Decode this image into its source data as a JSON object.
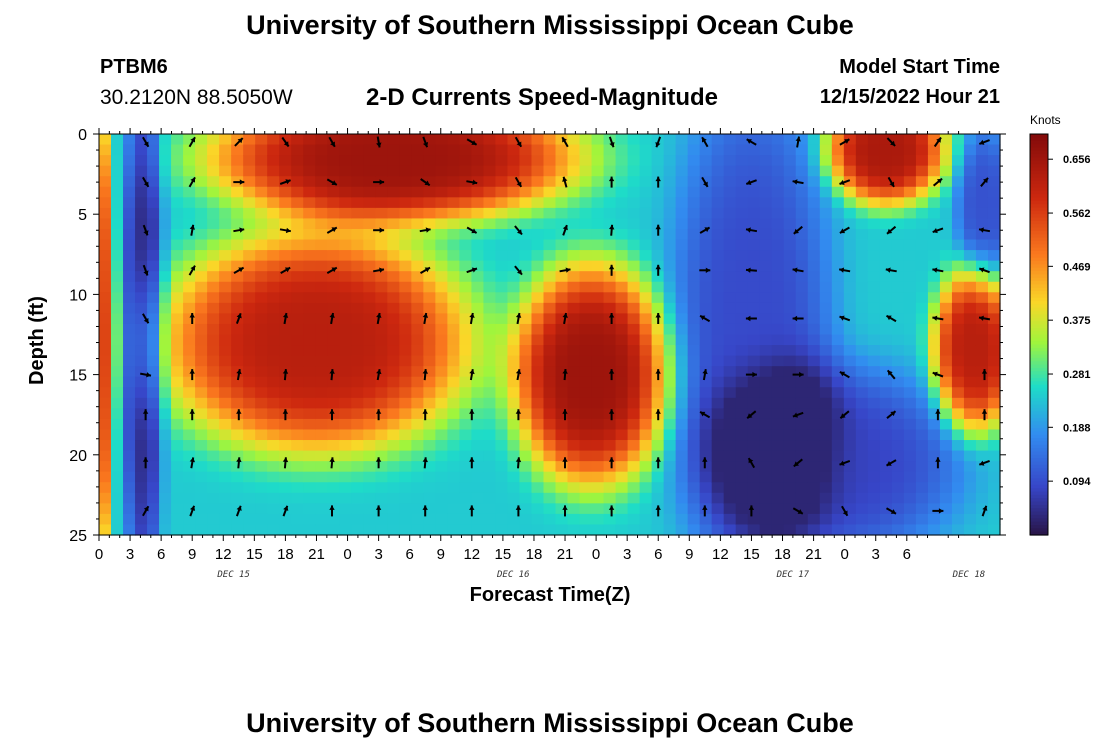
{
  "header": {
    "title": "University of Southern Mississippi Ocean Cube",
    "station": "PTBM6",
    "coords": "30.2120N  88.5050W",
    "plot_title": "2-D Currents Speed-Magnitude",
    "model_start_label": "Model Start Time",
    "model_start_value": "12/15/2022 Hour 21"
  },
  "footer": {
    "title": "University of Southern Mississippi Ocean Cube"
  },
  "colorbar": {
    "units": "Knots",
    "ticks": [
      "0.656",
      "0.562",
      "0.469",
      "0.375",
      "0.281",
      "0.188",
      "0.094"
    ],
    "tick_values": [
      0.656,
      0.562,
      0.469,
      0.375,
      0.281,
      0.188,
      0.094
    ],
    "min": 0.0,
    "max": 0.7
  },
  "chart_data": {
    "type": "heatmap",
    "title": "2-D Currents Speed-Magnitude",
    "xlabel": "Forecast Time(Z)",
    "ylabel": "Depth (ft)",
    "xlim": [
      0,
      87
    ],
    "ylim": [
      0,
      25
    ],
    "x_tick_labels": [
      "0",
      "3",
      "6",
      "9",
      "12",
      "15",
      "18",
      "21",
      "0",
      "3",
      "6",
      "9",
      "12",
      "15",
      "18",
      "21",
      "0",
      "3",
      "6",
      "9",
      "12",
      "15",
      "18",
      "21",
      "0",
      "3",
      "6"
    ],
    "y_tick_labels": [
      "0",
      "5",
      "10",
      "15",
      "20",
      "25"
    ],
    "day_labels": [
      {
        "text": "DEC 15",
        "hour": 13
      },
      {
        "text": "DEC 16",
        "hour": 40
      },
      {
        "text": "DEC 17",
        "hour": 67
      },
      {
        "text": "DEC 18",
        "hour": 84
      }
    ],
    "speed_units": "Knots",
    "features": [
      {
        "name": "surface-max",
        "t": [
          15,
          41
        ],
        "depth": [
          0,
          4
        ],
        "speed": 0.66
      },
      {
        "name": "mid-max-a",
        "t": [
          9,
          35
        ],
        "depth": [
          7,
          18
        ],
        "speed": 0.62
      },
      {
        "name": "mid-max-b",
        "t": [
          42,
          53
        ],
        "depth": [
          9,
          20
        ],
        "speed": 0.65
      },
      {
        "name": "late-surface",
        "t": [
          71,
          80
        ],
        "depth": [
          0,
          3
        ],
        "speed": 0.62
      },
      {
        "name": "late-mid",
        "t": [
          81,
          87
        ],
        "depth": [
          10,
          17
        ],
        "speed": 0.6
      },
      {
        "name": "low-column",
        "t": [
          3,
          5
        ],
        "depth": [
          0,
          25
        ],
        "speed": 0.06
      },
      {
        "name": "low-bottom",
        "t": [
          63,
          80
        ],
        "depth": [
          17,
          25
        ],
        "speed": 0.06
      }
    ],
    "vector_hours": [
      4.5,
      9,
      13.5,
      18,
      22.5,
      27,
      31.5,
      36,
      40.5,
      45,
      49.5,
      54,
      58.5,
      63,
      67.5,
      72,
      76.5,
      81,
      85.5
    ],
    "vector_depths": [
      0.5,
      3,
      6,
      8.5,
      11.5,
      15,
      17.5,
      20.5,
      23.5
    ],
    "vector_directions_deg": [
      [
        150,
        30,
        45,
        145,
        150,
        170,
        160,
        120,
        150,
        330,
        160,
        200,
        330,
        300,
        10,
        60,
        135,
        35,
        250
      ],
      [
        150,
        30,
        90,
        70,
        120,
        90,
        125,
        100,
        150,
        345,
        0,
        0,
        150,
        250,
        280,
        250,
        150,
        50,
        40
      ],
      [
        160,
        10,
        80,
        100,
        60,
        90,
        80,
        120,
        140,
        20,
        5,
        0,
        60,
        280,
        230,
        240,
        230,
        250,
        280
      ],
      [
        160,
        30,
        60,
        60,
        60,
        80,
        60,
        70,
        140,
        80,
        0,
        0,
        90,
        275,
        280,
        280,
        280,
        280,
        290
      ],
      [
        150,
        0,
        20,
        10,
        10,
        10,
        10,
        10,
        10,
        10,
        0,
        0,
        300,
        270,
        270,
        290,
        300,
        280,
        280
      ],
      [
        100,
        0,
        10,
        5,
        5,
        10,
        5,
        10,
        10,
        5,
        0,
        0,
        10,
        90,
        90,
        300,
        320,
        290,
        0
      ],
      [
        0,
        0,
        0,
        0,
        0,
        0,
        0,
        0,
        0,
        0,
        0,
        0,
        300,
        230,
        250,
        230,
        50,
        0,
        0
      ],
      [
        0,
        10,
        5,
        5,
        5,
        0,
        5,
        0,
        5,
        0,
        0,
        0,
        0,
        330,
        230,
        250,
        240,
        0,
        250
      ],
      [
        30,
        20,
        20,
        20,
        0,
        0,
        0,
        0,
        0,
        0,
        0,
        0,
        0,
        0,
        120,
        150,
        120,
        90,
        20
      ]
    ]
  }
}
